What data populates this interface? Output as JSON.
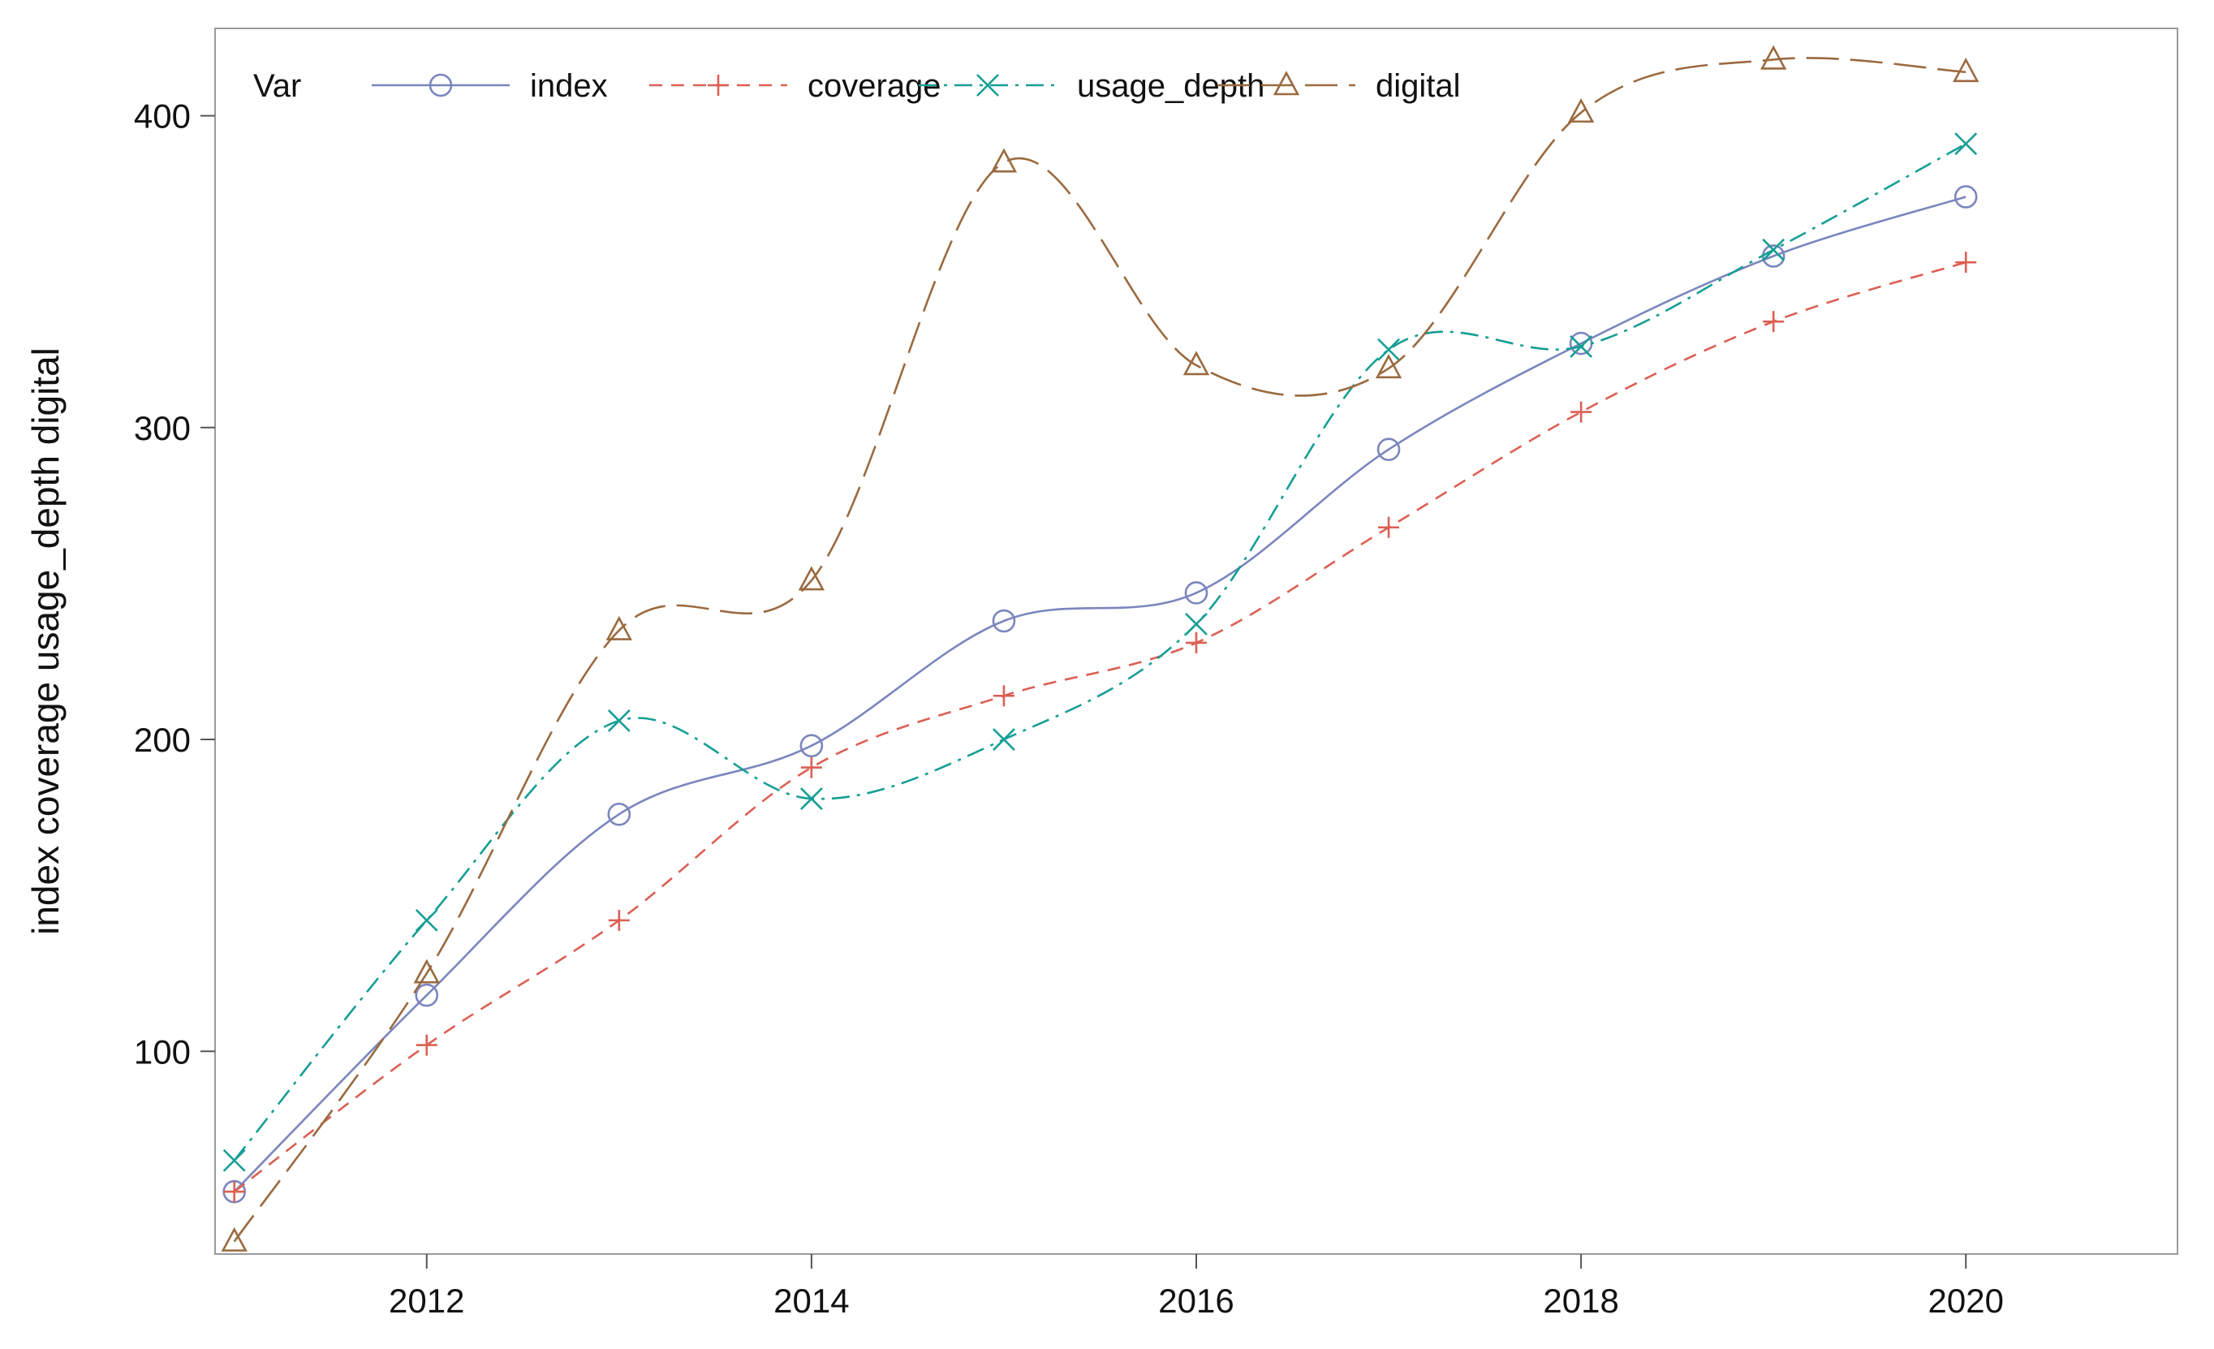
{
  "chart_data": {
    "type": "line",
    "title": "",
    "xlabel": "",
    "ylabel": "index coverage usage_depth digital",
    "x": [
      2011,
      2012,
      2013,
      2014,
      2015,
      2016,
      2017,
      2018,
      2019,
      2020
    ],
    "xlim": [
      2010.9,
      2021.1
    ],
    "ylim": [
      35,
      428
    ],
    "xticks": [
      2012,
      2014,
      2016,
      2018,
      2020
    ],
    "yticks": [
      100,
      200,
      300,
      400
    ],
    "grid": false,
    "legend": {
      "placement": "top-left inside",
      "title": "Var"
    },
    "series": [
      {
        "name": "index",
        "color": "#7b86bd",
        "marker": "circle",
        "dash": "solid",
        "values": [
          55,
          118,
          176,
          198,
          238,
          247,
          293,
          327,
          355,
          374
        ]
      },
      {
        "name": "coverage",
        "color": "#dc5f53",
        "marker": "plus",
        "dash": "dashed",
        "values": [
          55,
          102,
          142,
          191,
          214,
          231,
          268,
          305,
          334,
          353
        ]
      },
      {
        "name": "usage_depth",
        "color": "#169e95",
        "marker": "x",
        "dash": "dash-dot",
        "values": [
          65,
          142,
          206,
          181,
          200,
          237,
          325,
          326,
          357,
          391
        ]
      },
      {
        "name": "digital",
        "color": "#9a6a3f",
        "marker": "triangle",
        "dash": "long-dash",
        "values": [
          39,
          125,
          235,
          251,
          385,
          320,
          319,
          401,
          418,
          414
        ]
      }
    ]
  }
}
